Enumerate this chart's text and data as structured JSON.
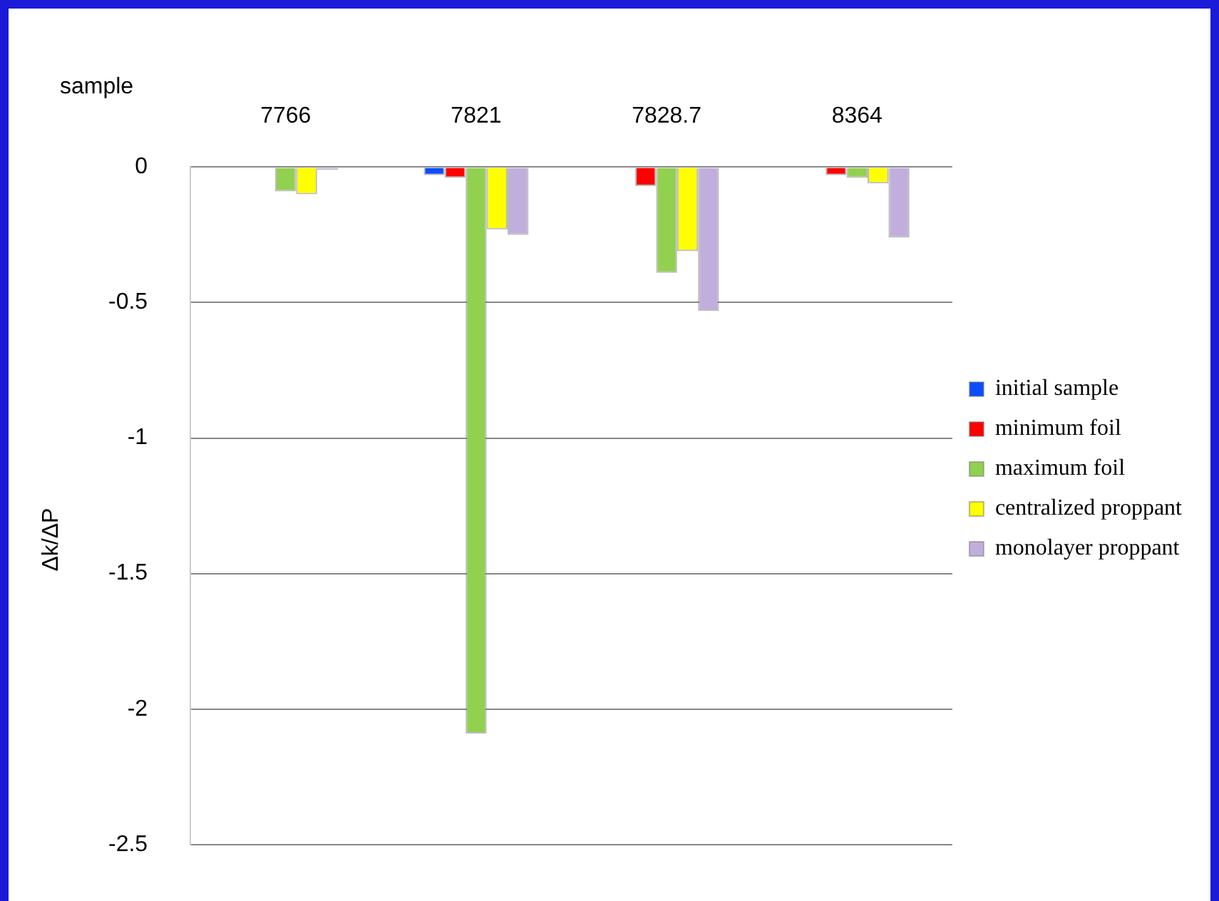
{
  "chart_data": {
    "type": "bar",
    "xlabel": "sample",
    "ylabel": "Δk/ΔP",
    "categories": [
      "7766",
      "7821",
      "7828.7",
      "8364"
    ],
    "series": [
      {
        "name": "initial sample",
        "color": "#0b4dfb",
        "values": [
          0,
          -0.03,
          0,
          0
        ]
      },
      {
        "name": "minimum foil",
        "color": "#ff0000",
        "values": [
          0,
          -0.04,
          -0.07,
          -0.03
        ]
      },
      {
        "name": "maximum foil",
        "color": "#92d050",
        "values": [
          -0.09,
          -2.09,
          -0.39,
          -0.04
        ]
      },
      {
        "name": "centralized proppant",
        "color": "#ffff00",
        "values": [
          -0.1,
          -0.23,
          -0.31,
          -0.06
        ]
      },
      {
        "name": "monolayer proppant",
        "color": "#c0afdc",
        "values": [
          -0.01,
          -0.25,
          -0.53,
          -0.26
        ]
      }
    ],
    "ylim": [
      -2.5,
      0
    ],
    "yticks": [
      0,
      -0.5,
      -1,
      -1.5,
      -2,
      -2.5
    ],
    "grid": "y",
    "legend": "right"
  }
}
